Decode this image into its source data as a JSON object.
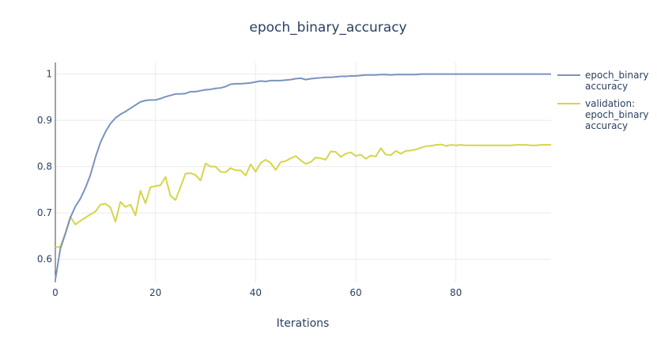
{
  "chart_data": {
    "type": "line",
    "title": "epoch_binary_accuracy",
    "xlabel": "Iterations",
    "ylabel": "",
    "xlim": [
      0,
      99
    ],
    "ylim": [
      0.55,
      1.025
    ],
    "grid": true,
    "legend_position": "right",
    "x_ticks": [
      0,
      20,
      40,
      60,
      80
    ],
    "y_ticks": [
      0.6,
      0.7,
      0.8,
      0.9,
      1
    ],
    "x_tick_labels": [
      "0",
      "20",
      "40",
      "60",
      "80"
    ],
    "y_tick_labels": [
      "0.6",
      "0.7",
      "0.8",
      "0.9",
      "1"
    ],
    "series": [
      {
        "name": "epoch_binary accuracy",
        "legend_lines": [
          "epoch_binary",
          "accuracy"
        ],
        "color": "#7a93bd",
        "values": [
          0.556,
          0.623,
          0.655,
          0.69,
          0.714,
          0.731,
          0.754,
          0.782,
          0.82,
          0.852,
          0.875,
          0.893,
          0.905,
          0.913,
          0.919,
          0.926,
          0.933,
          0.94,
          0.943,
          0.944,
          0.944,
          0.947,
          0.951,
          0.954,
          0.957,
          0.957,
          0.958,
          0.962,
          0.962,
          0.964,
          0.966,
          0.967,
          0.969,
          0.97,
          0.973,
          0.978,
          0.979,
          0.979,
          0.98,
          0.981,
          0.983,
          0.985,
          0.984,
          0.986,
          0.986,
          0.986,
          0.987,
          0.988,
          0.99,
          0.991,
          0.988,
          0.99,
          0.991,
          0.992,
          0.993,
          0.993,
          0.994,
          0.995,
          0.995,
          0.996,
          0.996,
          0.997,
          0.998,
          0.998,
          0.998,
          0.999,
          0.999,
          0.998,
          0.999,
          0.999,
          0.999,
          0.999,
          0.999,
          1.0,
          1.0,
          1.0,
          1.0,
          1.0,
          1.0,
          1.0,
          1.0,
          1.0,
          1.0,
          1.0,
          1.0,
          1.0,
          1.0,
          1.0,
          1.0,
          1.0,
          1.0,
          1.0,
          1.0,
          1.0,
          1.0,
          1.0,
          1.0,
          1.0,
          1.0,
          1.0
        ]
      },
      {
        "name": "validation: epoch_binary accuracy",
        "legend_lines": [
          "validation:",
          "epoch_binary",
          "accuracy"
        ],
        "color": "#d4d64a",
        "values": [
          0.626,
          0.627,
          0.657,
          0.692,
          0.675,
          0.683,
          0.69,
          0.697,
          0.703,
          0.718,
          0.72,
          0.712,
          0.681,
          0.724,
          0.713,
          0.718,
          0.695,
          0.748,
          0.721,
          0.756,
          0.758,
          0.76,
          0.778,
          0.737,
          0.728,
          0.756,
          0.785,
          0.786,
          0.782,
          0.77,
          0.807,
          0.8,
          0.8,
          0.789,
          0.788,
          0.797,
          0.792,
          0.792,
          0.781,
          0.805,
          0.789,
          0.808,
          0.815,
          0.808,
          0.793,
          0.81,
          0.812,
          0.818,
          0.823,
          0.814,
          0.806,
          0.81,
          0.82,
          0.818,
          0.815,
          0.833,
          0.832,
          0.821,
          0.828,
          0.831,
          0.823,
          0.826,
          0.817,
          0.824,
          0.822,
          0.84,
          0.826,
          0.825,
          0.834,
          0.828,
          0.834,
          0.835,
          0.837,
          0.841,
          0.844,
          0.845,
          0.847,
          0.848,
          0.845,
          0.847,
          0.846,
          0.847,
          0.846,
          0.846,
          0.846,
          0.846,
          0.846,
          0.846,
          0.846,
          0.846,
          0.846,
          0.846,
          0.847,
          0.847,
          0.847,
          0.846,
          0.846,
          0.847,
          0.847,
          0.847
        ]
      }
    ]
  }
}
